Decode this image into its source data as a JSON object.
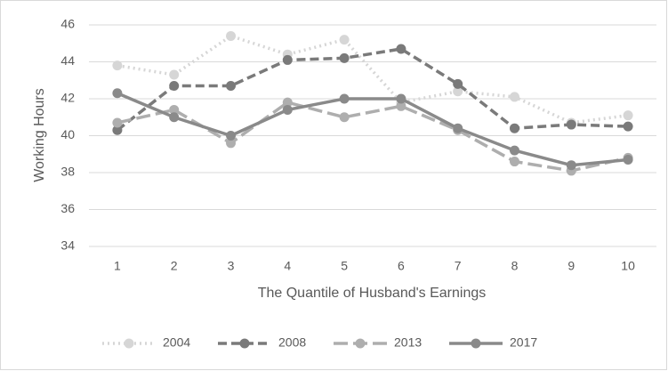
{
  "chart_data": {
    "type": "line",
    "x_label": "The Quantile of Husband's Earnings",
    "y_label": "Working Hours",
    "categories": [
      "1",
      "2",
      "3",
      "4",
      "5",
      "6",
      "7",
      "8",
      "9",
      "10"
    ],
    "series": [
      {
        "name": "2004",
        "color": "#d6d6d6",
        "style": "dotted",
        "values": [
          43.8,
          43.3,
          45.4,
          44.4,
          45.2,
          41.8,
          42.4,
          42.1,
          40.7,
          41.1
        ]
      },
      {
        "name": "2008",
        "color": "#7a7a7a",
        "style": "dashed",
        "values": [
          40.3,
          42.7,
          42.7,
          44.1,
          44.2,
          44.7,
          42.8,
          40.4,
          40.6,
          40.5
        ]
      },
      {
        "name": "2013",
        "color": "#aeaeae",
        "style": "long-dashed",
        "values": [
          40.7,
          41.4,
          39.6,
          41.8,
          41.0,
          41.6,
          40.3,
          38.6,
          38.1,
          38.8
        ]
      },
      {
        "name": "2017",
        "color": "#8a8a8a",
        "style": "solid",
        "values": [
          42.3,
          41.0,
          40.0,
          41.4,
          42.0,
          42.0,
          40.4,
          39.2,
          38.4,
          38.7
        ]
      }
    ],
    "ylim": [
      34,
      46
    ],
    "yticks": [
      34,
      36,
      38,
      40,
      42,
      44,
      46
    ],
    "grid": true,
    "legend": "bottom"
  }
}
